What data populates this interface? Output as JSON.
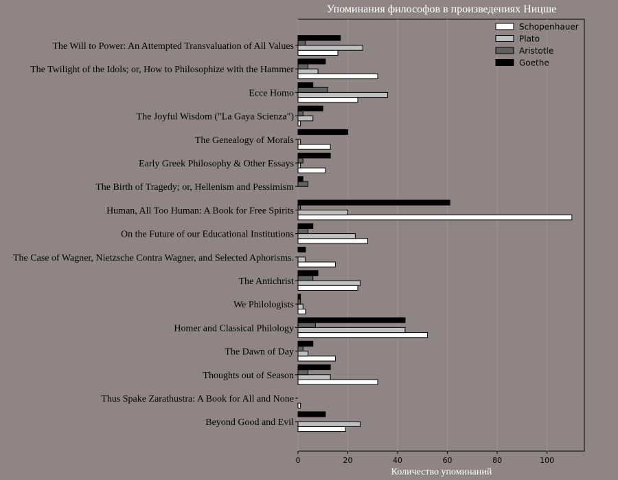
{
  "chart_data": {
    "type": "bar",
    "orientation": "horizontal",
    "title": "Упоминания философов в произведениях Ницше",
    "xlabel": "Количество упоминаний",
    "ylabel": "",
    "xlim": [
      0,
      115
    ],
    "xticks": [
      0,
      20,
      40,
      60,
      80,
      100
    ],
    "grid": true,
    "legend": "top-right",
    "categories": [
      "The Will to Power: An Attempted Transvaluation of All Values",
      "The Twilight of the Idols; or, How to Philosophize with the Hammer",
      "Ecce Homo",
      "The Joyful Wisdom (\"La Gaya Scienza\")",
      "The Genealogy of Morals",
      "Early Greek Philosophy & Other Essays",
      "The Birth of Tragedy; or, Hellenism and Pessimism",
      "Human, All Too Human: A Book for Free Spirits",
      "On the Future of our Educational Institutions",
      "The Case of Wagner, Nietzsche Contra Wagner, and Selected Aphorisms.",
      "The Antichrist",
      "We Philologists",
      "Homer and Classical Philology",
      "The Dawn of Day",
      "Thoughts out of Season",
      "Thus Spake Zarathustra: A Book for All and None",
      "Beyond Good and Evil"
    ],
    "series": [
      {
        "name": "Schopenhauer",
        "color": "#ffffff",
        "values": [
          16,
          32,
          24,
          1,
          13,
          11,
          0,
          110,
          28,
          15,
          24,
          3,
          52,
          15,
          32,
          1,
          19
        ]
      },
      {
        "name": "Plato",
        "color": "#bfbfbf",
        "values": [
          26,
          8,
          36,
          6,
          1,
          1,
          0,
          20,
          23,
          3,
          25,
          2,
          43,
          4,
          13,
          0,
          25
        ]
      },
      {
        "name": "Aristotle",
        "color": "#606060",
        "values": [
          3,
          4,
          12,
          2,
          0,
          2,
          4,
          1,
          4,
          0,
          6,
          1,
          7,
          2,
          4,
          0,
          0
        ]
      },
      {
        "name": "Goethe",
        "color": "#000000",
        "values": [
          17,
          11,
          6,
          10,
          20,
          13,
          2,
          61,
          6,
          3,
          8,
          1,
          43,
          6,
          13,
          0,
          11
        ]
      }
    ]
  }
}
